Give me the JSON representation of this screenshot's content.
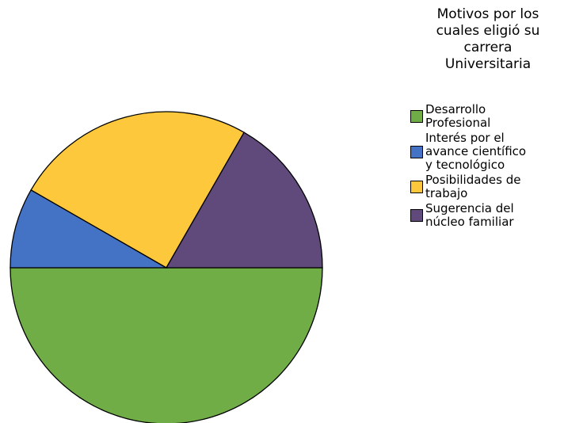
{
  "chart_data": {
    "type": "pie",
    "title": "Motivos por los\ncuales eligió su\ncarrera\nUniversitaria",
    "categories": [
      "Desarrollo\nProfesional",
      "Interés por el\navance científico\ny tecnológico",
      "Posibilidades de\ntrabajo",
      "Sugerencia del\nnúcleo familiar"
    ],
    "values": [
      50,
      8.3,
      25,
      16.7
    ],
    "colors": [
      "#70ad47",
      "#4472c4",
      "#fdc83b",
      "#604a7b"
    ]
  }
}
